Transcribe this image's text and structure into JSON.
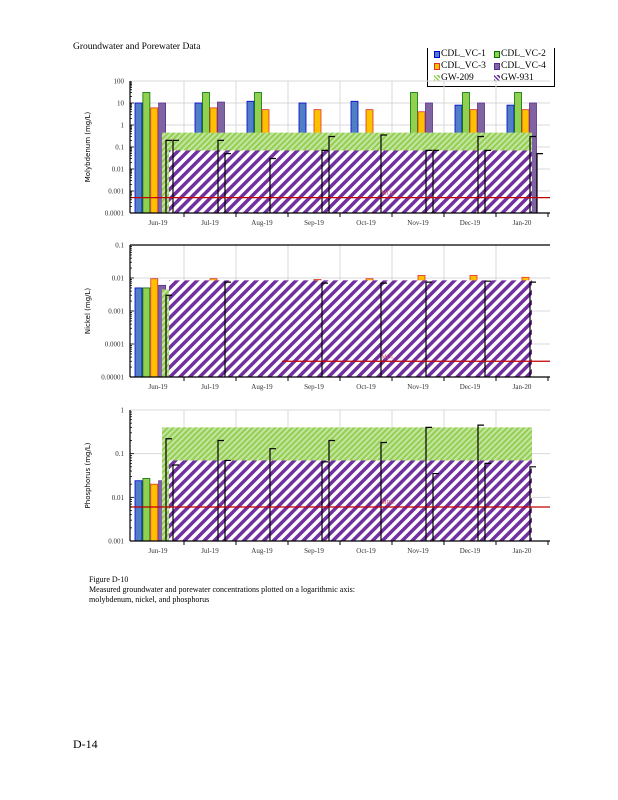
{
  "header": {
    "title": "Groundwater and Porewater Data"
  },
  "legend": {
    "items": [
      {
        "label": "CDL_VC-1",
        "color": "#4F7FC4",
        "edge": "#0000CC",
        "kind": "bar"
      },
      {
        "label": "CDL_VC-2",
        "color": "#92D050",
        "edge": "#007000",
        "kind": "bar"
      },
      {
        "label": "CDL_VC-3",
        "color": "#FFC000",
        "edge": "#E03030",
        "kind": "bar"
      },
      {
        "label": "CDL_VC-4",
        "color": "#8064A2",
        "edge": "#5A2D91",
        "kind": "bar"
      },
      {
        "label": "GW-209",
        "color": "#92D050",
        "kind": "hatch"
      },
      {
        "label": "GW-931",
        "color": "#7030A0",
        "kind": "hatch"
      }
    ]
  },
  "colors": {
    "mdl_line": "#C00000",
    "gw209_hatch": "#92D050",
    "gw931_hatch": "#7030A0",
    "grid": "#D9D9D9",
    "step_line": "#000000"
  },
  "chart_data": [
    {
      "type": "bar",
      "title": "",
      "ylabel": "Molybdenum (mg/L)",
      "yscale": "log",
      "ylim": [
        0.0001,
        100
      ],
      "yticks": [
        "0.0001",
        "0.001",
        "0.01",
        "0.1",
        "1",
        "10",
        "100"
      ],
      "categories": [
        "Jun-19",
        "Jul-19",
        "Aug-19",
        "Sep-19",
        "Oct-19",
        "Nov-19",
        "Dec-19",
        "Jan-20"
      ],
      "series": [
        {
          "name": "CDL_VC-1",
          "values": [
            10,
            10,
            12,
            10,
            12,
            null,
            8,
            8
          ]
        },
        {
          "name": "CDL_VC-2",
          "values": [
            30,
            30,
            30,
            null,
            null,
            30,
            30,
            30
          ]
        },
        {
          "name": "CDL_VC-3",
          "values": [
            6,
            6,
            5,
            5,
            5,
            4,
            5,
            5
          ]
        },
        {
          "name": "CDL_VC-4",
          "values": [
            10,
            11,
            null,
            null,
            null,
            10,
            10,
            10
          ]
        }
      ],
      "areas": [
        {
          "name": "GW-209",
          "band": [
            0.07,
            0.45
          ]
        },
        {
          "name": "GW-931",
          "band": [
            0.0001,
            0.07
          ]
        }
      ],
      "step_line_x": [
        "Jun-19",
        "Jun-19",
        "Jul-19",
        "Jul-19",
        "Aug-19",
        "Sep-19",
        "Sep-19",
        "Oct-19",
        "Nov-19",
        "Nov-19",
        "Dec-19",
        "Dec-19",
        "Jan-20",
        "Jan-20"
      ],
      "step_line": [
        0.2,
        0.2,
        0.2,
        0.05,
        0.03,
        0.3,
        0.07,
        0.35,
        0.07,
        0.07,
        0.3,
        0.07,
        0.3,
        0.05
      ],
      "mdl": {
        "label": "MDL",
        "value": 0.0005
      }
    },
    {
      "type": "bar",
      "title": "",
      "ylabel": "Nickel (mg/L)",
      "yscale": "log",
      "ylim": [
        1e-05,
        0.1
      ],
      "yticks": [
        "0.00001",
        "0.0001",
        "0.001",
        "0.01",
        "0.1"
      ],
      "categories": [
        "Jun-19",
        "Jul-19",
        "Aug-19",
        "Sep-19",
        "Oct-19",
        "Nov-19",
        "Dec-19",
        "Jan-20"
      ],
      "series": [
        {
          "name": "CDL_VC-1",
          "values": [
            0.005,
            null,
            null,
            null,
            null,
            null,
            null,
            null
          ]
        },
        {
          "name": "CDL_VC-2",
          "values": [
            0.005,
            null,
            null,
            null,
            null,
            null,
            null,
            null
          ]
        },
        {
          "name": "CDL_VC-3",
          "values": [
            0.0095,
            0.0095,
            null,
            0.009,
            0.0095,
            0.012,
            0.012,
            0.0105
          ]
        },
        {
          "name": "CDL_VC-4",
          "values": [
            0.006,
            null,
            null,
            null,
            null,
            null,
            null,
            null
          ]
        }
      ],
      "areas": [
        {
          "name": "GW-209",
          "band": [
            1e-05,
            0.0045
          ]
        },
        {
          "name": "GW-931",
          "band": [
            1e-05,
            0.0085
          ]
        }
      ],
      "step_line_x": [
        "Jun-19",
        "Jul-19",
        "Sep-19",
        "Oct-19",
        "Nov-19",
        "Dec-19",
        "Jan-20"
      ],
      "step_line": [
        0.003,
        0.0075,
        0.007,
        0.007,
        0.0075,
        0.008,
        0.0075
      ],
      "mdl": {
        "label": "MDL",
        "value": 3e-05
      }
    },
    {
      "type": "bar",
      "title": "",
      "ylabel": "Phosphorus (mg/L)",
      "yscale": "log",
      "ylim": [
        0.001,
        1
      ],
      "yticks": [
        "0.001",
        "0.01",
        "0.1",
        "1"
      ],
      "categories": [
        "Jun-19",
        "Jul-19",
        "Aug-19",
        "Sep-19",
        "Oct-19",
        "Nov-19",
        "Dec-19",
        "Jan-20"
      ],
      "series": [
        {
          "name": "CDL_VC-1",
          "values": [
            0.024,
            null,
            null,
            null,
            null,
            null,
            null,
            null
          ]
        },
        {
          "name": "CDL_VC-2",
          "values": [
            0.027,
            null,
            null,
            null,
            null,
            null,
            null,
            null
          ]
        },
        {
          "name": "CDL_VC-3",
          "values": [
            0.02,
            null,
            null,
            null,
            null,
            null,
            null,
            null
          ]
        },
        {
          "name": "CDL_VC-4",
          "values": [
            0.024,
            null,
            null,
            null,
            null,
            null,
            null,
            null
          ]
        }
      ],
      "areas": [
        {
          "name": "GW-209",
          "band": [
            0.07,
            0.4
          ]
        },
        {
          "name": "GW-931",
          "band": [
            0.001,
            0.07
          ]
        }
      ],
      "step_line_x": [
        "Jun-19",
        "Jun-19",
        "Jul-19",
        "Jul-19",
        "Aug-19",
        "Sep-19",
        "Sep-19",
        "Oct-19",
        "Nov-19",
        "Nov-19",
        "Dec-19",
        "Dec-19",
        "Jan-20"
      ],
      "step_line": [
        0.22,
        0.055,
        0.2,
        0.07,
        0.13,
        0.2,
        0.065,
        0.18,
        0.4,
        0.035,
        0.45,
        0.06,
        0.05
      ],
      "mdl": {
        "label": "MDL",
        "value": 0.006
      }
    }
  ],
  "caption": {
    "figure": "Figure D-10",
    "line1": "Measured groundwater and porewater concentrations plotted on a logarithmic axis:",
    "line2": "molybdenum, nickel, and phosphorus"
  },
  "footer": {
    "page": "D-14"
  }
}
